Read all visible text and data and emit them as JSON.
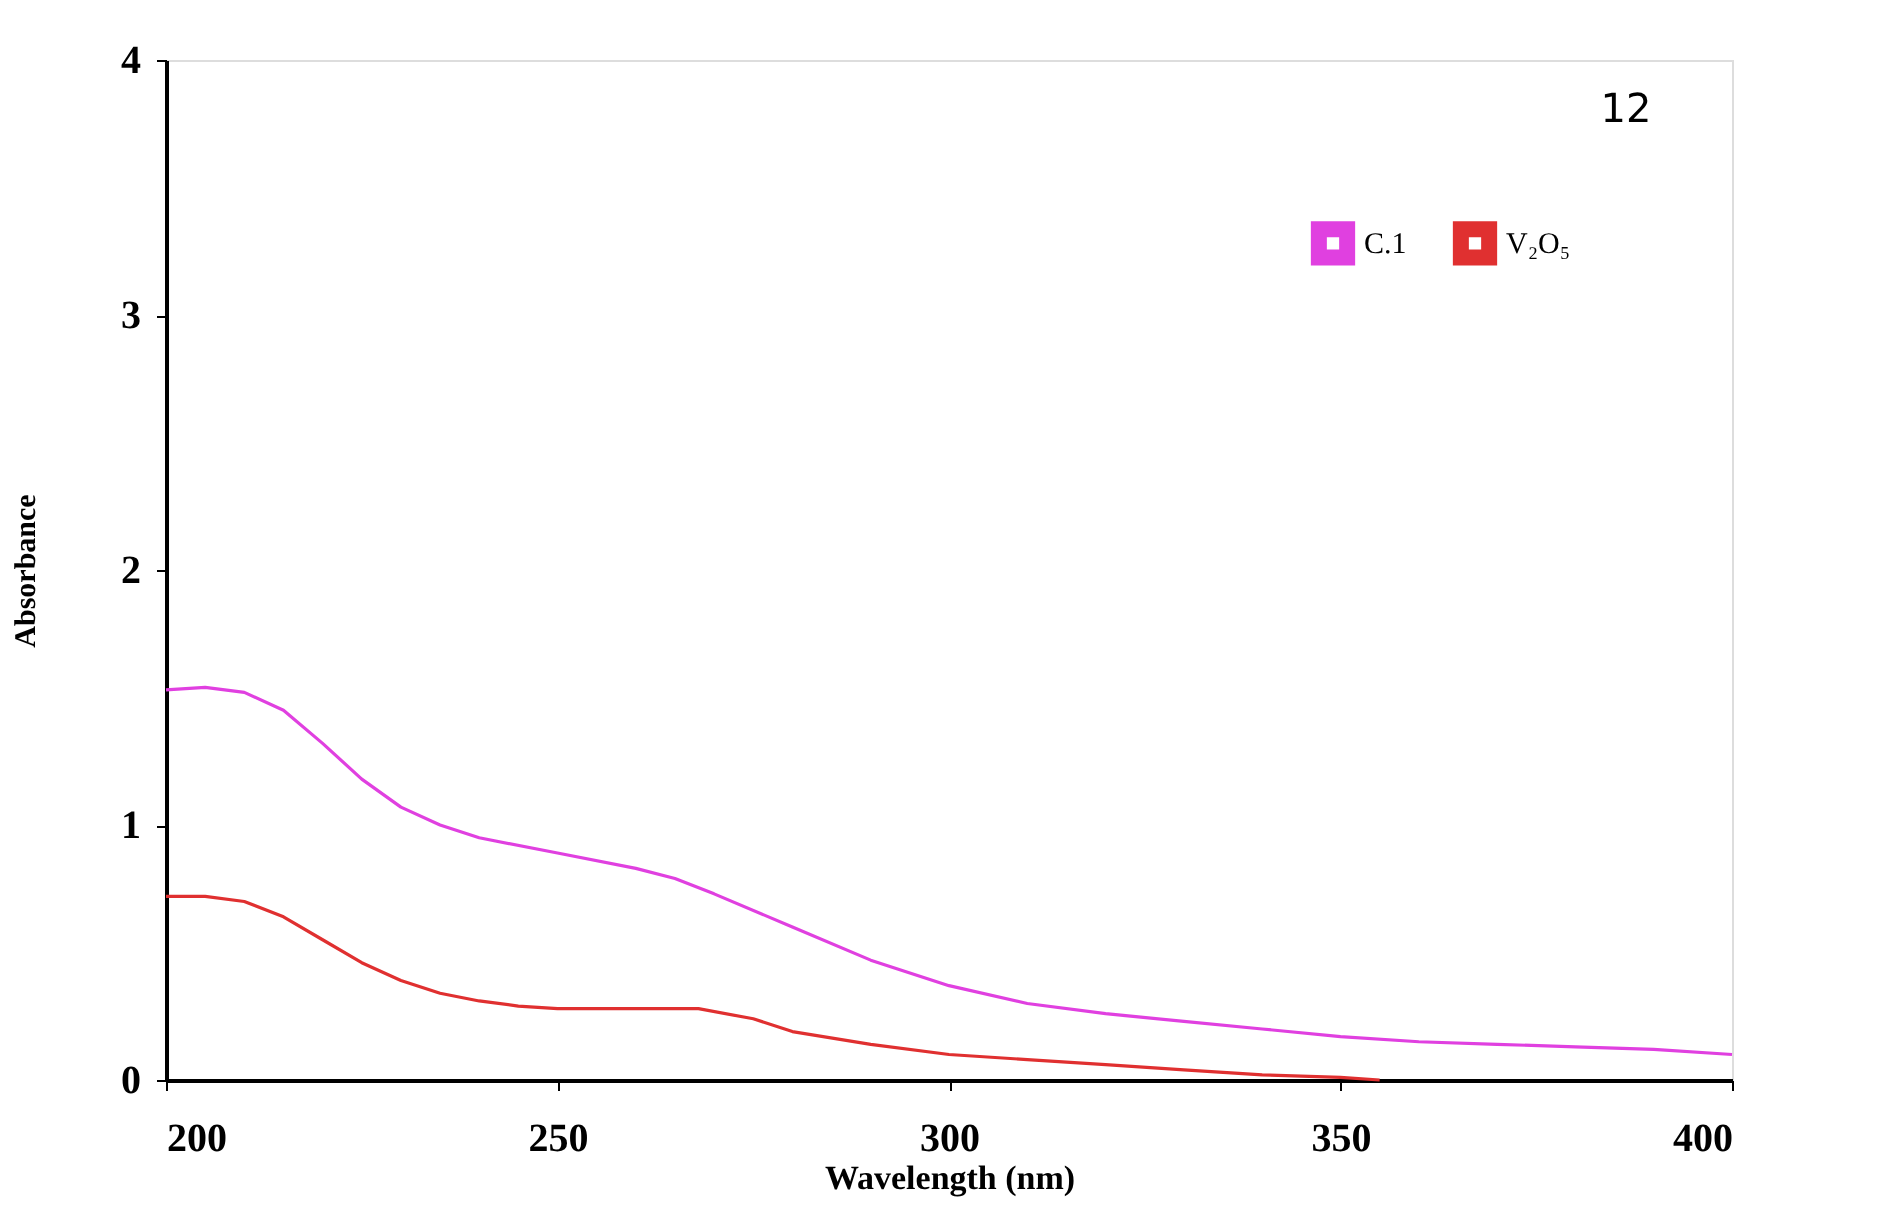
{
  "chart_data": {
    "type": "line",
    "xlabel": "Wavelength (nm)",
    "ylabel": "Absorbance",
    "annotations": [
      "12"
    ],
    "xlim": [
      200,
      400
    ],
    "xticks": [
      200,
      250,
      300,
      350,
      400
    ],
    "ylim": [
      0,
      4
    ],
    "yticks": [
      0,
      1,
      2,
      3,
      4
    ],
    "grid": false,
    "legend": "top right",
    "marker": "none",
    "line_style": "solid",
    "series": [
      {
        "name": "C.1",
        "color": "#e040e0",
        "x": [
          200,
          205,
          210,
          215,
          220,
          225,
          230,
          235,
          240,
          250,
          260,
          265,
          270,
          280,
          290,
          300,
          310,
          320,
          330,
          340,
          350,
          360,
          370,
          380,
          390,
          400
        ],
        "values": [
          1.53,
          1.54,
          1.52,
          1.45,
          1.32,
          1.18,
          1.07,
          1.0,
          0.95,
          0.89,
          0.83,
          0.79,
          0.73,
          0.6,
          0.47,
          0.37,
          0.3,
          0.26,
          0.23,
          0.2,
          0.17,
          0.15,
          0.14,
          0.13,
          0.12,
          0.1
        ]
      },
      {
        "name": "V₂O₅",
        "color": "#e03030",
        "x": [
          200,
          205,
          210,
          215,
          220,
          225,
          230,
          235,
          240,
          245,
          250,
          260,
          268,
          275,
          280,
          290,
          300,
          310,
          320,
          330,
          340,
          350,
          355
        ],
        "values": [
          0.72,
          0.72,
          0.7,
          0.64,
          0.55,
          0.46,
          0.39,
          0.34,
          0.31,
          0.29,
          0.28,
          0.28,
          0.28,
          0.24,
          0.19,
          0.14,
          0.1,
          0.08,
          0.06,
          0.04,
          0.02,
          0.01,
          0.0
        ]
      }
    ]
  }
}
